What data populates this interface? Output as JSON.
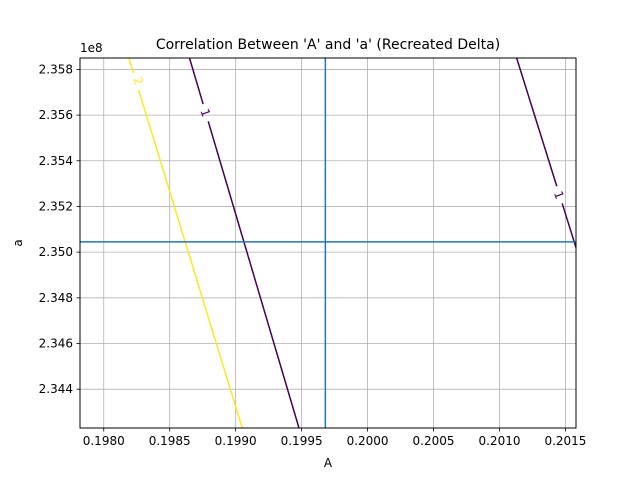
{
  "chart_data": {
    "type": "contour",
    "title": "Correlation Between 'A' and 'a' (Recreated Delta)",
    "xlabel": "A",
    "ylabel": "a",
    "y_offset_text": "1e8",
    "xlim": [
      0.19782,
      0.20158
    ],
    "ylim": [
      234230000,
      235850000
    ],
    "x_ticks": [
      0.198,
      0.1985,
      0.199,
      0.1995,
      0.2,
      0.2005,
      0.201,
      0.2015
    ],
    "x_tick_labels": [
      "0.1980",
      "0.1985",
      "0.1990",
      "0.1995",
      "0.2000",
      "0.2005",
      "0.2010",
      "0.2015"
    ],
    "y_ticks": [
      234400000,
      234600000,
      234800000,
      235000000,
      235200000,
      235400000,
      235600000,
      235800000
    ],
    "y_tick_labels": [
      "2.344",
      "2.346",
      "2.348",
      "2.350",
      "2.352",
      "2.354",
      "2.356",
      "2.358"
    ],
    "grid": true,
    "best_fit": {
      "x": 0.19968,
      "y": 235045000,
      "color": "#1f77b4"
    },
    "contours": [
      {
        "label": "1",
        "color": "#440154",
        "segments": [
          {
            "x": [
              0.19865,
              0.19948
            ],
            "y": [
              235850000,
              234230000
            ]
          },
          {
            "x": [
              0.20113,
              0.20158
            ],
            "y": [
              235850000,
              235020000
            ]
          }
        ]
      },
      {
        "label": "2",
        "color": "#fde725",
        "segments": [
          {
            "x": [
              0.19819,
              0.19905
            ],
            "y": [
              235850000,
              234230000
            ]
          }
        ]
      }
    ],
    "contour_labels": [
      {
        "text": "1",
        "x": 0.19877,
        "y": 235610000,
        "color": "#440154"
      },
      {
        "text": "1",
        "x": 0.20145,
        "y": 235250000,
        "color": "#440154"
      },
      {
        "text": "2",
        "x": 0.19826,
        "y": 235750000,
        "color": "#fde725"
      }
    ]
  }
}
